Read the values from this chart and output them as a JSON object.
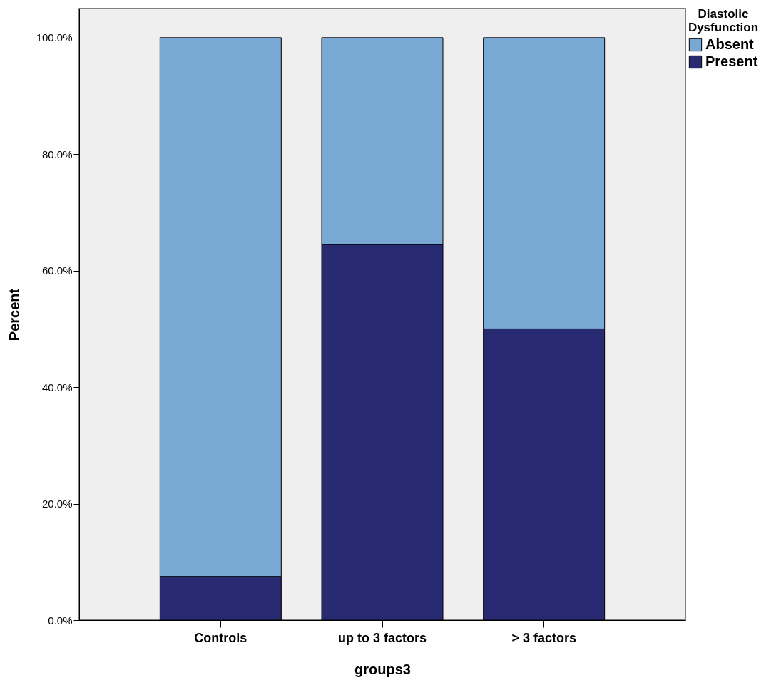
{
  "chart_data": {
    "type": "bar",
    "stacked": true,
    "xlabel": "groups3",
    "ylabel": "Percent",
    "legend_title": "Diastolic Dysfunction",
    "legend": "top right",
    "grid": false,
    "categories": [
      "Controls",
      "up to 3 factors",
      "> 3 factors"
    ],
    "series": [
      {
        "name": "Present",
        "color": "#282a72",
        "values": [
          7.5,
          64.5,
          50.0
        ]
      },
      {
        "name": "Absent",
        "color": "#7aa8d4",
        "values": [
          92.5,
          35.5,
          50.0
        ]
      }
    ],
    "ylim": [
      0,
      105
    ],
    "yticks": [
      {
        "value": 0,
        "label": "0.0%"
      },
      {
        "value": 20,
        "label": "20.0%"
      },
      {
        "value": 40,
        "label": "40.0%"
      },
      {
        "value": 60,
        "label": "60.0%"
      },
      {
        "value": 80,
        "label": "80.0%"
      },
      {
        "value": 100,
        "label": "100.0%"
      }
    ]
  }
}
